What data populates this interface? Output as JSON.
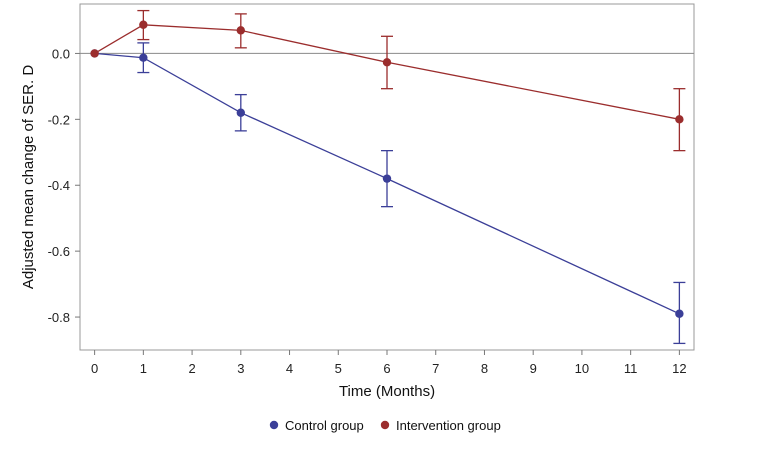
{
  "chart_data": {
    "type": "line",
    "title": "",
    "xlabel": "Time (Months)",
    "ylabel": "Adjusted mean change of SER. D",
    "xlim": [
      -0.3,
      12.3
    ],
    "ylim": [
      -0.9,
      0.15
    ],
    "x_ticks": [
      0,
      1,
      2,
      3,
      4,
      5,
      6,
      7,
      8,
      9,
      10,
      11,
      12
    ],
    "y_ticks": [
      0.0,
      -0.2,
      -0.4,
      -0.6,
      -0.8
    ],
    "y_tick_labels": [
      "0.0",
      "-0.2",
      "-0.4",
      "-0.6",
      "-0.8"
    ],
    "reference_line": 0,
    "legend_position": "bottom-center",
    "series": [
      {
        "name": "Control group",
        "color": "#3b3f98",
        "x": [
          0,
          1,
          3,
          6,
          12
        ],
        "values": [
          0.0,
          -0.013,
          -0.18,
          -0.38,
          -0.79
        ],
        "error_low": [
          0.0,
          -0.058,
          -0.235,
          -0.465,
          -0.88
        ],
        "error_high": [
          0.0,
          0.032,
          -0.125,
          -0.295,
          -0.695
        ]
      },
      {
        "name": "Intervention group",
        "color": "#9b2d2d",
        "x": [
          0,
          1,
          3,
          6,
          12
        ],
        "values": [
          0.0,
          0.087,
          0.07,
          -0.027,
          -0.2
        ],
        "error_low": [
          0.0,
          0.042,
          0.017,
          -0.107,
          -0.295
        ],
        "error_high": [
          0.0,
          0.13,
          0.12,
          0.052,
          -0.107
        ]
      }
    ]
  }
}
